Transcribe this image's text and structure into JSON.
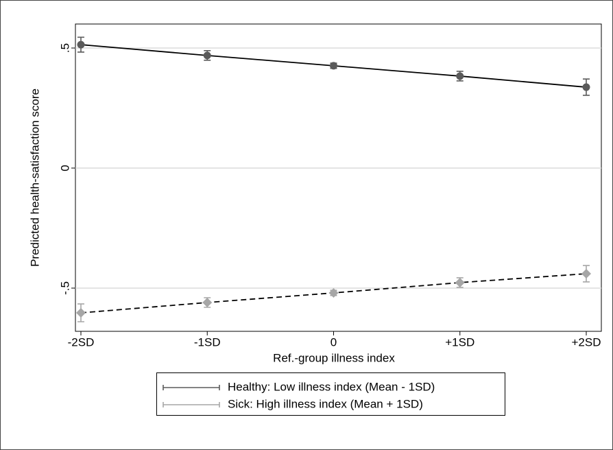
{
  "chart_data": {
    "type": "line",
    "xlabel": "Ref.-group illness index",
    "ylabel": "Predicted health-satisfaction score",
    "categories": [
      "-2SD",
      "-1SD",
      "0",
      "+1SD",
      "+2SD"
    ],
    "ylim": [
      -0.68,
      0.6
    ],
    "yticks": [
      {
        "value": 0.5,
        "label": ".5"
      },
      0,
      {
        "value": -0.5,
        "label": "-.5"
      }
    ],
    "grid": true,
    "line_color": "#000000",
    "legend": "bottom",
    "series": [
      {
        "name": "Healthy: Low illness index (Mean - 1SD)",
        "color": "#5a5a5a",
        "marker": "circle",
        "line_style": "solid",
        "values": [
          0.514,
          0.469,
          0.426,
          0.383,
          0.337
        ],
        "errors": [
          0.031,
          0.02,
          0.011,
          0.02,
          0.034
        ]
      },
      {
        "name": "Sick: High illness index (Mean + 1SD)",
        "color": "#a6a6a6",
        "marker": "diamond",
        "line_style": "dashed",
        "values": [
          -0.603,
          -0.56,
          -0.52,
          -0.477,
          -0.44
        ],
        "errors": [
          0.037,
          0.02,
          0.011,
          0.02,
          0.034
        ]
      }
    ]
  }
}
